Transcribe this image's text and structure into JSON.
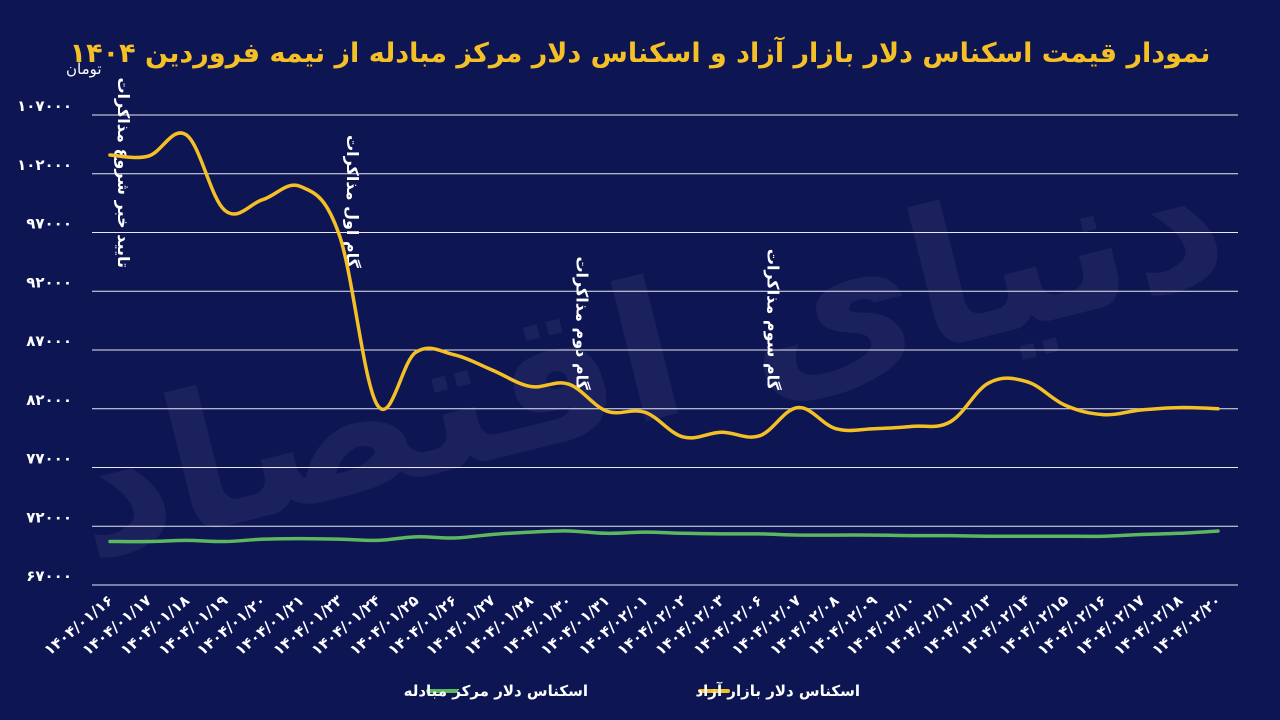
{
  "chart_data": {
    "type": "line",
    "title": "نمودار قیمت اسکناس دلار بازار آزاد و اسکناس دلار مرکز مبادله از نیمه فروردین ۱۴۰۴",
    "ylabel": "تومان",
    "ylim": [
      67000,
      107000
    ],
    "yticks": [
      "۶۷۰۰۰",
      "۷۲۰۰۰",
      "۷۷۰۰۰",
      "۸۲۰۰۰",
      "۸۷۰۰۰",
      "۹۲۰۰۰",
      "۹۷۰۰۰",
      "۱۰۲۰۰۰",
      "۱۰۷۰۰۰"
    ],
    "ytick_values": [
      67000,
      72000,
      77000,
      82000,
      87000,
      92000,
      97000,
      102000,
      107000
    ],
    "categories": [
      "۱۴۰۴/۰۱/۱۶",
      "۱۴۰۴/۰۱/۱۷",
      "۱۴۰۴/۰۱/۱۸",
      "۱۴۰۴/۰۱/۱۹",
      "۱۴۰۴/۰۱/۲۰",
      "۱۴۰۴/۰۱/۲۱",
      "۱۴۰۴/۰۱/۲۳",
      "۱۴۰۴/۰۱/۲۴",
      "۱۴۰۴/۰۱/۲۵",
      "۱۴۰۴/۰۱/۲۶",
      "۱۴۰۴/۰۱/۲۷",
      "۱۴۰۴/۰۱/۲۸",
      "۱۴۰۴/۰۱/۳۰",
      "۱۴۰۴/۰۱/۳۱",
      "۱۴۰۴/۰۲/۰۱",
      "۱۴۰۴/۰۲/۰۲",
      "۱۴۰۴/۰۲/۰۳",
      "۱۴۰۴/۰۲/۰۶",
      "۱۴۰۴/۰۲/۰۷",
      "۱۴۰۴/۰۲/۰۸",
      "۱۴۰۴/۰۲/۰۹",
      "۱۴۰۴/۰۲/۱۰",
      "۱۴۰۴/۰۲/۱۱",
      "۱۴۰۴/۰۲/۱۳",
      "۱۴۰۴/۰۲/۱۴",
      "۱۴۰۴/۰۲/۱۵",
      "۱۴۰۴/۰۲/۱۶",
      "۱۴۰۴/۰۲/۱۷",
      "۱۴۰۴/۰۲/۱۸",
      "۱۴۰۴/۰۲/۲۰"
    ],
    "series": [
      {
        "name": "اسکناس دلار بازار آزاد",
        "color": "#f5c026",
        "values": [
          103600,
          103500,
          105300,
          98900,
          99800,
          100900,
          96800,
          82300,
          86800,
          86600,
          85300,
          83900,
          84100,
          81800,
          81700,
          79600,
          80000,
          79700,
          82100,
          80300,
          80300,
          80500,
          80900,
          84200,
          84300,
          82300,
          81500,
          81900,
          82100,
          82000
        ]
      },
      {
        "name": "اسکناس دلار مرکز مبادله",
        "color": "#5cb85c",
        "values": [
          70700,
          70700,
          70800,
          70700,
          70900,
          70950,
          70900,
          70800,
          71100,
          71000,
          71300,
          71500,
          71600,
          71400,
          71500,
          71400,
          71350,
          71350,
          71250,
          71250,
          71250,
          71200,
          71200,
          71150,
          71150,
          71150,
          71150,
          71300,
          71400,
          71600
        ]
      }
    ],
    "annotations": [
      {
        "text": "تایید خبر شروع مذاکرات",
        "category_index": 0
      },
      {
        "text": "گام اول مذاکرات",
        "category_index": 6
      },
      {
        "text": "گام دوم مذاکرات",
        "category_index": 12
      },
      {
        "text": "گام سوم مذاکرات",
        "category_index": 17
      }
    ],
    "watermark": "دنیای اقتصاد",
    "legend_position": "bottom"
  }
}
